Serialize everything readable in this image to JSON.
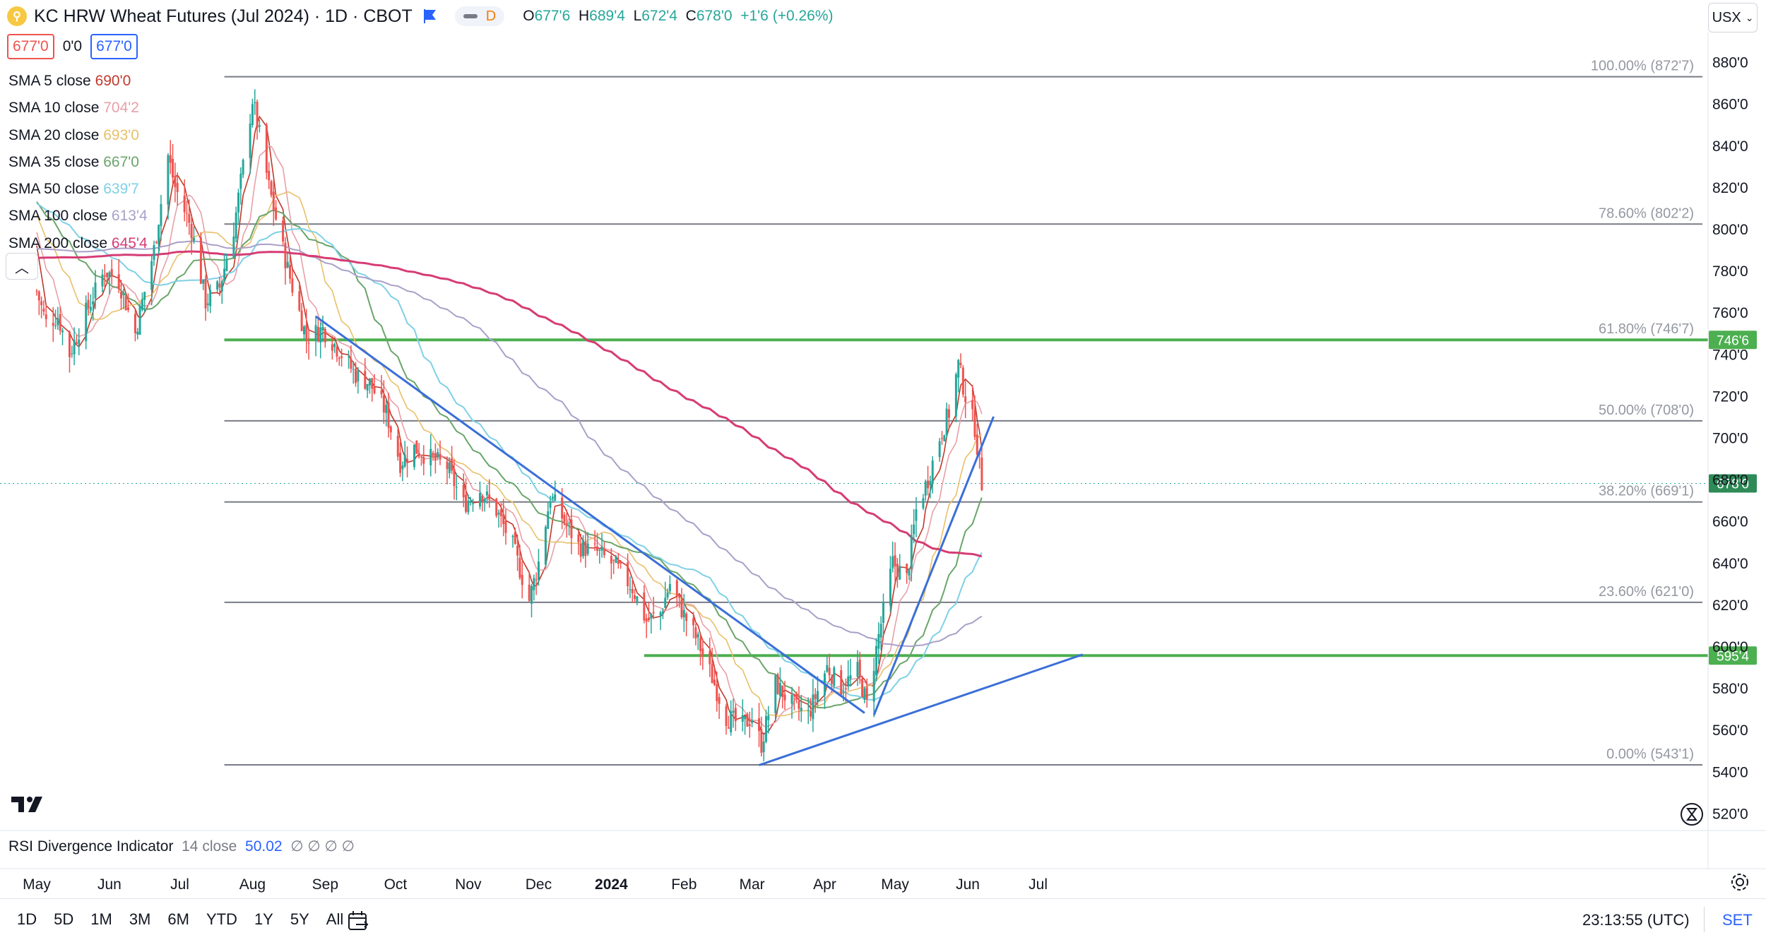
{
  "header": {
    "title": "KC HRW Wheat Futures (Jul 2024) · 1D · CBOT",
    "indicator_letter": "D",
    "ohlc": {
      "o_label": "O",
      "o": "677'6",
      "h_label": "H",
      "h": "689'4",
      "l_label": "L",
      "l": "672'4",
      "c_label": "C",
      "c": "678'0",
      "change": "+1'6 (+0.26%)"
    },
    "bid": "677'0",
    "spread": "0'0",
    "ask": "677'0",
    "currency": "USX"
  },
  "sma_legend": [
    {
      "label": "SMA 5 close",
      "value": "690'0",
      "color": "#c0392b"
    },
    {
      "label": "SMA 10 close",
      "value": "704'2",
      "color": "#e8a0a8"
    },
    {
      "label": "SMA 20 close",
      "value": "693'0",
      "color": "#e8c06a"
    },
    {
      "label": "SMA 35 close",
      "value": "667'0",
      "color": "#6aa56a"
    },
    {
      "label": "SMA 50 close",
      "value": "639'7",
      "color": "#7fd0e6"
    },
    {
      "label": "SMA 100 close",
      "value": "613'4",
      "color": "#a9a0c8"
    },
    {
      "label": "SMA 200 close",
      "value": "645'4",
      "color": "#d63c74"
    }
  ],
  "rsi": {
    "label": "RSI Divergence Indicator",
    "params": "14 close",
    "value": "50.02",
    "na": "∅ ∅ ∅ ∅"
  },
  "bottom_bar": {
    "ranges": [
      "1D",
      "5D",
      "1M",
      "3M",
      "6M",
      "YTD",
      "1Y",
      "5Y",
      "All"
    ],
    "clock": "23:13:55 (UTC)",
    "session": "SET"
  },
  "colors": {
    "up": "#26a69a",
    "down": "#ef5350",
    "fib": "#787b86",
    "green_line": "#4caf50",
    "trend": "#3a6fd8",
    "price_tag": "#2e8b57"
  },
  "icons": [
    "tradingview-logo-icon",
    "flag-icon",
    "chevron-up-icon",
    "calendar-range-icon",
    "hourglass-icon",
    "gear-icon"
  ],
  "chart_data": {
    "type": "candlestick",
    "y_axis": {
      "min": 512,
      "max": 890,
      "ticks": [
        880,
        860,
        840,
        820,
        800,
        780,
        760,
        740,
        720,
        700,
        680,
        660,
        640,
        620,
        600,
        580,
        560,
        540,
        520
      ],
      "tick_labels": [
        "880'0",
        "860'0",
        "840'0",
        "820'0",
        "800'0",
        "780'0",
        "760'0",
        "740'0",
        "720'0",
        "700'0",
        "680'0",
        "660'0",
        "640'0",
        "620'0",
        "600'0",
        "580'0",
        "560'0",
        "540'0",
        "520'0"
      ]
    },
    "x_axis": {
      "labels": [
        "May",
        "Jun",
        "Jul",
        "Aug",
        "Sep",
        "Oct",
        "Nov",
        "Dec",
        "2024",
        "Feb",
        "Mar",
        "Apr",
        "May",
        "Jun",
        "Jul"
      ]
    },
    "fib_levels": [
      {
        "label": "100.00% (872'7)",
        "price": 872.875
      },
      {
        "label": "78.60% (802'2)",
        "price": 802.25
      },
      {
        "label": "61.80% (746'7)",
        "price": 746.875
      },
      {
        "label": "50.00% (708'0)",
        "price": 708.0
      },
      {
        "label": "38.20% (669'1)",
        "price": 669.125
      },
      {
        "label": "23.60% (621'0)",
        "price": 621.0
      },
      {
        "label": "0.00% (543'1)",
        "price": 543.125
      }
    ],
    "horizontal_lines": [
      {
        "price": 746.75,
        "tag": "746'6"
      },
      {
        "price": 595.5,
        "tag": "595'4"
      }
    ],
    "last_price": {
      "price": 678.0,
      "tag": "678'0"
    },
    "trendlines": [
      {
        "from": {
          "date": "2023-08-28",
          "price": 758
        },
        "to": {
          "date": "2024-04-18",
          "price": 568
        }
      },
      {
        "from": {
          "date": "2024-03-04",
          "price": 543
        },
        "to": {
          "date": "2024-07-20",
          "price": 596
        }
      },
      {
        "from": {
          "date": "2024-04-22",
          "price": 567
        },
        "to": {
          "date": "2024-06-12",
          "price": 710
        }
      }
    ],
    "candles_summary": {
      "start": "2023-05-01",
      "end": "2024-06-07",
      "high": "872'7",
      "low": "543'1",
      "last_close": "678'0"
    }
  }
}
